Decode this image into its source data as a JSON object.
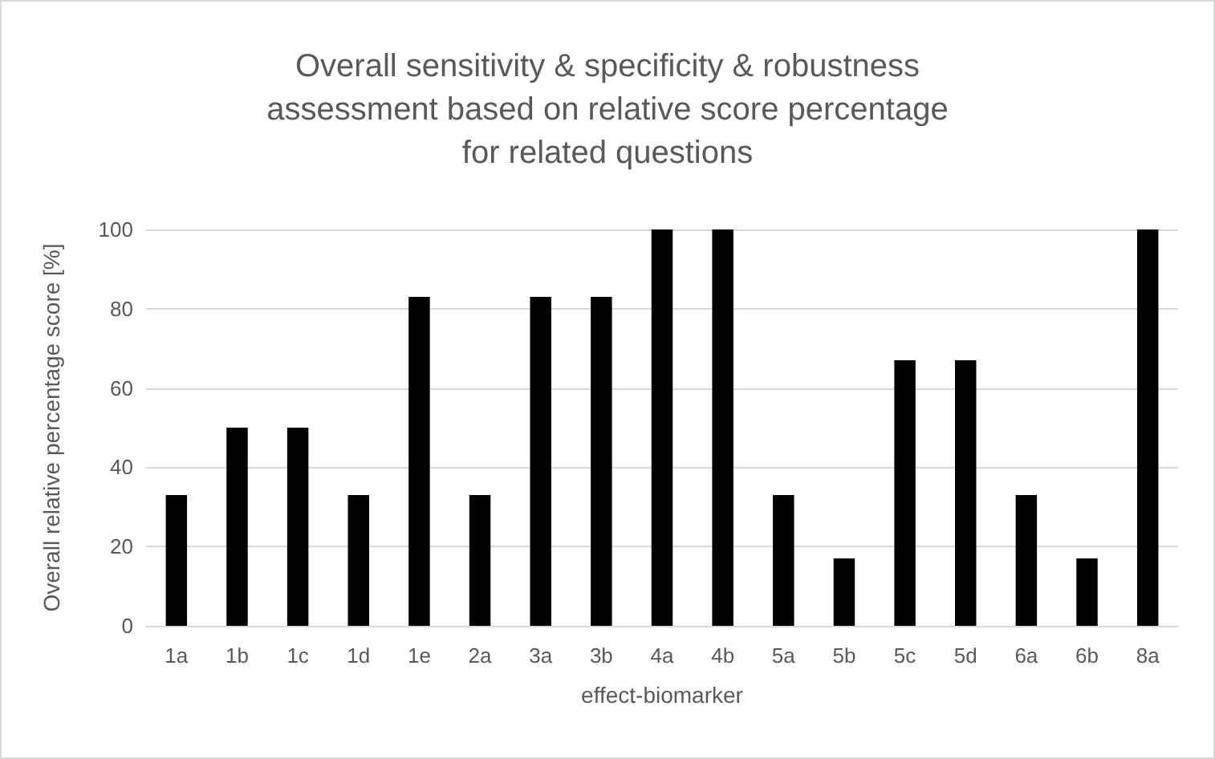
{
  "chart_data": {
    "type": "bar",
    "title": "Overall sensitivity & specificity & robustness\nassessment based on relative score percentage\nfor related questions",
    "xlabel": "effect-biomarker",
    "ylabel": "Overall relative percentage score [%]",
    "categories": [
      "1a",
      "1b",
      "1c",
      "1d",
      "1e",
      "2a",
      "3a",
      "3b",
      "4a",
      "4b",
      "5a",
      "5b",
      "5c",
      "5d",
      "6a",
      "6b",
      "8a"
    ],
    "values": [
      33,
      50,
      50,
      33,
      83,
      33,
      83,
      83,
      100,
      100,
      33,
      17,
      67,
      67,
      33,
      17,
      100
    ],
    "color": "#000000",
    "ylim": [
      0,
      100
    ],
    "yticks": [
      0,
      20,
      40,
      60,
      80,
      100
    ],
    "grid": "y"
  }
}
